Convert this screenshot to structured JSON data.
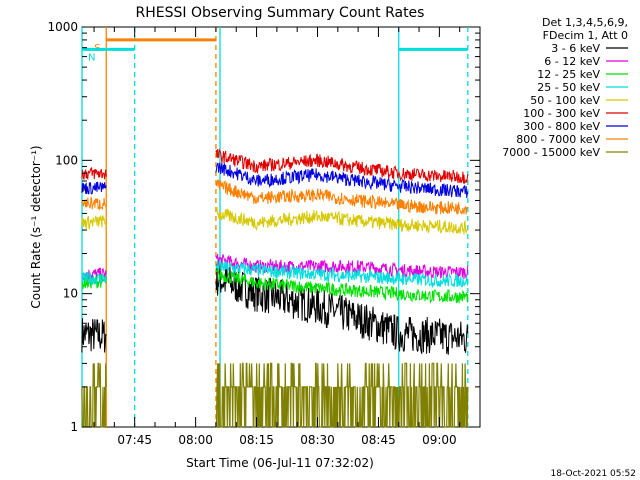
{
  "chart_data": {
    "type": "line",
    "title": "RHESSI Observing Summary Count Rates",
    "xlabel": "Start Time (06-Jul-11 07:32:02)",
    "ylabel": "Count Rate (s⁻¹ detector⁻¹)",
    "xlim": [
      "07:32:02",
      "09:10:00"
    ],
    "ylim": [
      1,
      1000
    ],
    "y_scale": "log",
    "grid": false,
    "legend_position": "top-right-outside",
    "x_ticks": [
      "07:45",
      "08:00",
      "08:15",
      "08:30",
      "08:45",
      "09:00"
    ],
    "y_ticks": [
      "1",
      "10",
      "100",
      "1000"
    ],
    "legend_header": [
      "Det 1,3,4,5,6,9,",
      "FDecim 1, Att 0"
    ],
    "data_gap": [
      "07:38:00",
      "08:05:00"
    ],
    "series": [
      {
        "name": "3 - 6 keV",
        "color": "#000000",
        "x": [
          "07:32",
          "07:38",
          "08:05",
          "08:15",
          "08:30",
          "08:40",
          "08:50",
          "09:00",
          "09:07"
        ],
        "y": [
          5.0,
          4.8,
          13,
          10,
          8,
          6.5,
          5.0,
          4.8,
          4.6
        ]
      },
      {
        "name": "6 - 12 keV",
        "color": "#e000e0",
        "x": [
          "07:32",
          "07:38",
          "08:05",
          "08:15",
          "08:30",
          "08:40",
          "08:50",
          "09:00",
          "09:07"
        ],
        "y": [
          14,
          14,
          18,
          16,
          16,
          16,
          15,
          14.5,
          14.5
        ]
      },
      {
        "name": "12 - 25 keV",
        "color": "#00e000",
        "x": [
          "07:32",
          "07:38",
          "08:05",
          "08:15",
          "08:30",
          "08:40",
          "08:50",
          "09:00",
          "09:07"
        ],
        "y": [
          12,
          12.5,
          14,
          12,
          11,
          10.5,
          10,
          9.5,
          9.5
        ]
      },
      {
        "name": "25 - 50 keV",
        "color": "#00dddd",
        "x": [
          "07:32",
          "07:38",
          "08:05",
          "08:15",
          "08:30",
          "08:40",
          "08:50",
          "09:00",
          "09:07"
        ],
        "y": [
          13,
          13,
          16,
          15,
          14,
          13.5,
          13,
          12.5,
          12.5
        ]
      },
      {
        "name": "50 - 100 keV",
        "color": "#d6c800",
        "x": [
          "07:32",
          "07:38",
          "08:05",
          "08:15",
          "08:30",
          "08:40",
          "08:50",
          "09:00",
          "09:07"
        ],
        "y": [
          34,
          35,
          40,
          34,
          38,
          35,
          33,
          32,
          31
        ]
      },
      {
        "name": "100 - 300 keV",
        "color": "#e00000",
        "x": [
          "07:32",
          "07:38",
          "08:05",
          "08:15",
          "08:30",
          "08:40",
          "08:50",
          "09:00",
          "09:07"
        ],
        "y": [
          80,
          80,
          110,
          90,
          100,
          88,
          80,
          76,
          75
        ]
      },
      {
        "name": "300 - 800 keV",
        "color": "#0000e0",
        "x": [
          "07:32",
          "07:38",
          "08:05",
          "08:15",
          "08:30",
          "08:40",
          "08:50",
          "09:00",
          "09:07"
        ],
        "y": [
          62,
          62,
          90,
          70,
          78,
          70,
          64,
          60,
          58
        ]
      },
      {
        "name": "800 - 7000 keV",
        "color": "#ff8000",
        "x": [
          "07:32",
          "07:38",
          "08:05",
          "08:15",
          "08:30",
          "08:40",
          "08:50",
          "09:00",
          "09:07"
        ],
        "y": [
          48,
          47,
          65,
          52,
          55,
          50,
          46,
          44,
          44
        ]
      },
      {
        "name": "7000 - 15000 keV",
        "color": "#808000",
        "x": [
          "07:32",
          "07:38",
          "08:05",
          "08:15",
          "08:30",
          "08:40",
          "08:50",
          "09:00",
          "09:07"
        ],
        "y": [
          1.5,
          1.5,
          1.5,
          1.5,
          2.5,
          2.0,
          1.5,
          1.5,
          1.5
        ]
      }
    ],
    "annotations": [
      {
        "label": "S",
        "color": "#ff8000",
        "x_start": "07:38:00",
        "x_end": "08:05:00",
        "y": 800
      },
      {
        "label": "N",
        "color": "#00dddd",
        "x_start": "07:32:02",
        "x_end": "07:45:00",
        "y": 680
      },
      {
        "label": "",
        "color": "#00dddd",
        "x_start": "08:50:00",
        "x_end": "09:07:00",
        "y": 680
      }
    ],
    "vertical_markers": [
      {
        "x": "07:32:02",
        "color": "#00dddd",
        "style": "solid"
      },
      {
        "x": "07:38:00",
        "color": "#ff8000",
        "style": "solid"
      },
      {
        "x": "07:45:00",
        "color": "#00dddd",
        "style": "dashed"
      },
      {
        "x": "08:05:00",
        "color": "#ff8000",
        "style": "dashed"
      },
      {
        "x": "08:06:00",
        "color": "#00dddd",
        "style": "solid"
      },
      {
        "x": "08:50:00",
        "color": "#00dddd",
        "style": "solid"
      },
      {
        "x": "09:07:00",
        "color": "#00dddd",
        "style": "dashed"
      }
    ]
  },
  "footer": {
    "timestamp": "18-Oct-2021 05:52"
  }
}
